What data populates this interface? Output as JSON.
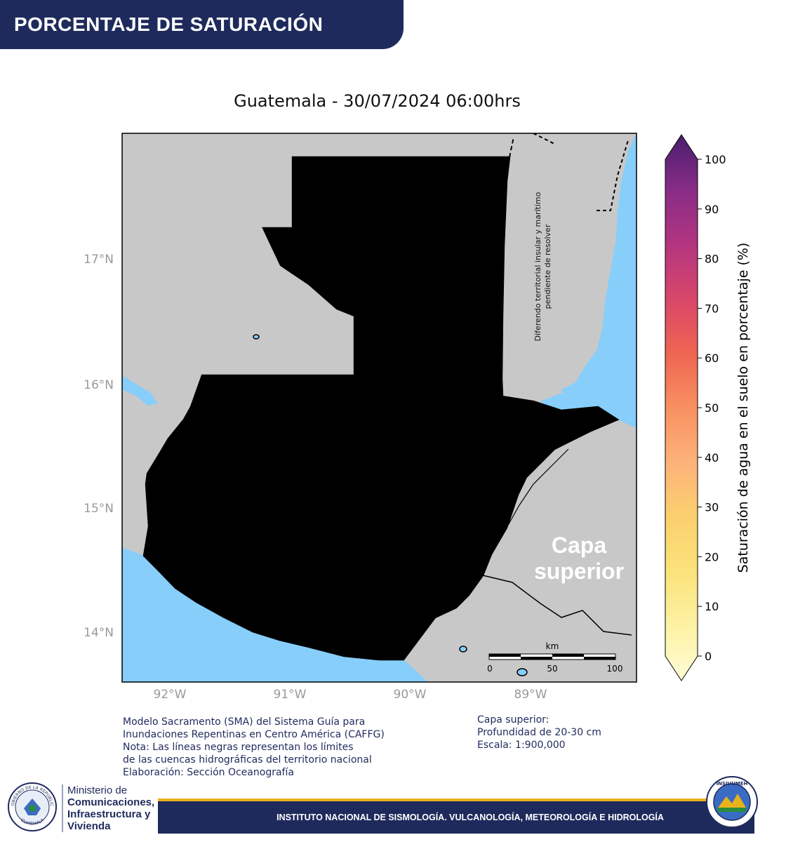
{
  "header": {
    "title": "PORCENTAJE DE SATURACIÓN"
  },
  "map": {
    "title": "Guatemala - 30/07/2024  06:00hrs",
    "lat_labels": [
      "17°N",
      "16°N",
      "15°N",
      "14°N"
    ],
    "lon_labels": [
      "92°W",
      "91°W",
      "90°W",
      "89°W"
    ],
    "dispute_note_line1": "Diferendo territorial insular y marítimo",
    "dispute_note_line2": "pendiente de resolver",
    "layer_overlay_line1": "Capa",
    "layer_overlay_line2": "superior",
    "scalebar": {
      "unit": "km",
      "ticks": [
        "0",
        "50",
        "100"
      ]
    },
    "colors": {
      "ocean": "#87cefa",
      "land_outside": "#c8c8c8",
      "border": "#000000"
    }
  },
  "colorbar": {
    "label": "Saturación de agua en el suelo en porcentaje (%)",
    "ticks": [
      "0",
      "10",
      "20",
      "30",
      "40",
      "50",
      "60",
      "70",
      "80",
      "90",
      "100"
    ]
  },
  "notes": {
    "model_lines": [
      "Modelo Sacramento (SMA) del Sistema Guía para",
      "Inundaciones Repentinas en Centro América (CAFFG)",
      "Nota: Las líneas negras representan los límites",
      "de las cuencas hidrográficas del territorio nacional",
      "Elaboración: Sección Oceanografía"
    ],
    "layer_lines": [
      "Capa superior:",
      "Profundidad de 20-30 cm",
      "Escala: 1:900,000"
    ]
  },
  "footer": {
    "ministry_line1": "Ministerio de",
    "ministry_line2": "Comunicaciones,",
    "ministry_line3": "Infraestructura y",
    "ministry_line4": "Vivienda",
    "institute": "INSTITUTO NACIONAL DE SISMOLOGÍA. VULCANOLOGÍA, METEOROLOGÍA E HIDROLOGÍA",
    "seal_text_top": "GOBIERNO DE LA REPÚBLICA",
    "seal_text_bottom": "GUATEMALA",
    "logo_text": "INSIVUMEH"
  }
}
